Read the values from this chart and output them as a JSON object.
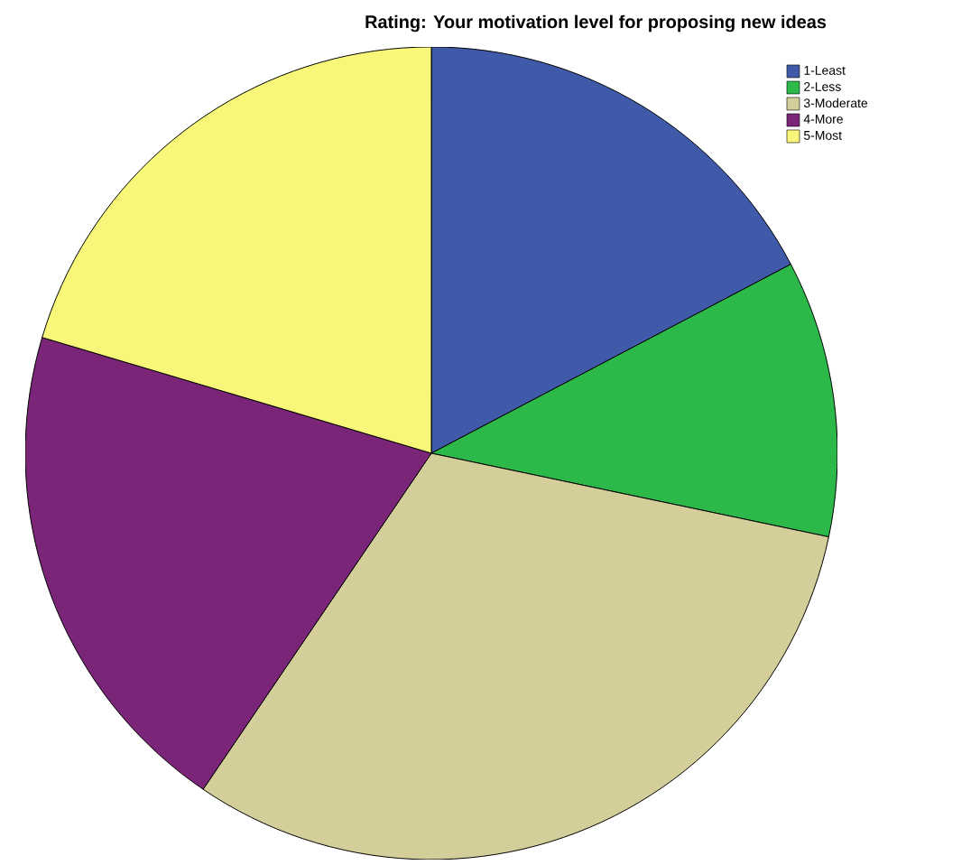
{
  "chart_data": {
    "type": "pie",
    "title": "Rating: Your motivation level for proposing new ideas",
    "categories": [
      "1-Least",
      "2-Less",
      "3-Moderate",
      "4-More",
      "5-Most"
    ],
    "values": [
      17.3,
      11.0,
      31.2,
      20.1,
      20.4
    ],
    "colors": [
      "#3f5aa8",
      "#2db84a",
      "#d4cf9a",
      "#7b2579",
      "#f9f77a"
    ],
    "legend": "top right"
  }
}
